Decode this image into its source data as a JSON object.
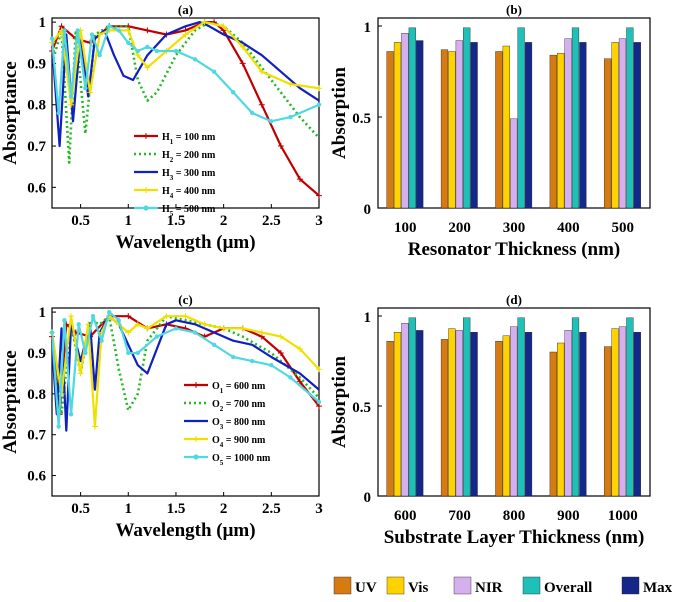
{
  "chart_data": [
    {
      "panel": "(a)",
      "type": "line",
      "title": "(a)",
      "xlabel": "Wavelength (μm)",
      "ylabel": "Absorptance",
      "xlim": [
        0.2,
        3
      ],
      "ylim": [
        0.55,
        1.01
      ],
      "xticks": [
        0.5,
        1,
        1.5,
        2,
        2.5,
        3
      ],
      "xtick_labels": [
        "0.5",
        "1",
        "1.5",
        "2",
        "2.5",
        "3"
      ],
      "yticks": [
        0.6,
        0.7,
        0.8,
        0.9,
        1
      ],
      "ytick_labels": [
        "0.6",
        "0.7",
        "0.8",
        "0.9",
        "1"
      ],
      "legend_position": "lower-left",
      "series": [
        {
          "name": "H",
          "sub": "1",
          "value_text": " = 100 nm",
          "color": "#c00000",
          "dash": "solid",
          "marker": "plus",
          "x": [
            0.2,
            0.3,
            0.45,
            0.6,
            0.8,
            1.0,
            1.2,
            1.4,
            1.6,
            1.8,
            1.9,
            2.0,
            2.2,
            2.4,
            2.6,
            2.8,
            3.0
          ],
          "y": [
            0.93,
            0.99,
            0.96,
            0.95,
            0.99,
            0.99,
            0.98,
            0.97,
            0.98,
            1.0,
            1.0,
            0.98,
            0.9,
            0.8,
            0.7,
            0.62,
            0.58
          ]
        },
        {
          "name": "H",
          "sub": "2",
          "value_text": " = 200 nm",
          "color": "#22bb22",
          "dash": "dotted",
          "marker": "none",
          "x": [
            0.2,
            0.3,
            0.38,
            0.45,
            0.55,
            0.65,
            0.8,
            1.0,
            1.1,
            1.2,
            1.3,
            1.5,
            1.7,
            1.85,
            2.0,
            2.2,
            2.5,
            2.8,
            3.0
          ],
          "y": [
            0.9,
            0.98,
            0.66,
            0.98,
            0.73,
            0.97,
            0.99,
            0.99,
            0.86,
            0.81,
            0.83,
            0.92,
            0.98,
            1.0,
            0.99,
            0.95,
            0.86,
            0.77,
            0.72
          ]
        },
        {
          "name": "H",
          "sub": "3",
          "value_text": " = 300 nm",
          "color": "#1020c0",
          "dash": "solid",
          "marker": "none",
          "x": [
            0.2,
            0.28,
            0.35,
            0.42,
            0.5,
            0.58,
            0.65,
            0.75,
            0.85,
            0.95,
            1.05,
            1.2,
            1.4,
            1.6,
            1.75,
            1.85,
            2.0,
            2.2,
            2.4,
            2.6,
            2.8,
            3.0
          ],
          "y": [
            0.95,
            0.7,
            0.97,
            0.76,
            0.97,
            0.82,
            0.96,
            0.98,
            0.92,
            0.87,
            0.86,
            0.92,
            0.97,
            0.99,
            1.0,
            0.99,
            0.97,
            0.95,
            0.92,
            0.88,
            0.84,
            0.81
          ]
        },
        {
          "name": "H",
          "sub": "4",
          "value_text": " = 400 nm",
          "color": "#f0e000",
          "dash": "solid",
          "marker": "plus",
          "x": [
            0.2,
            0.3,
            0.4,
            0.5,
            0.6,
            0.7,
            0.8,
            1.0,
            1.1,
            1.2,
            1.4,
            1.6,
            1.8,
            2.0,
            2.2,
            2.4,
            2.7,
            3.0
          ],
          "y": [
            0.95,
            0.98,
            0.8,
            0.98,
            0.83,
            0.97,
            0.98,
            0.98,
            0.92,
            0.89,
            0.93,
            0.97,
            1.0,
            0.99,
            0.94,
            0.88,
            0.85,
            0.84
          ]
        },
        {
          "name": "H",
          "sub": "5",
          "value_text": " = 500 nm",
          "color": "#50d8e0",
          "dash": "solid",
          "marker": "star",
          "x": [
            0.2,
            0.27,
            0.33,
            0.4,
            0.47,
            0.55,
            0.62,
            0.7,
            0.8,
            0.9,
            1.0,
            1.1,
            1.2,
            1.3,
            1.5,
            1.7,
            1.9,
            2.1,
            2.3,
            2.5,
            2.7,
            3.0
          ],
          "y": [
            0.96,
            0.78,
            0.98,
            0.82,
            0.98,
            0.84,
            0.97,
            0.92,
            0.99,
            0.98,
            0.95,
            0.93,
            0.94,
            0.93,
            0.93,
            0.91,
            0.88,
            0.83,
            0.78,
            0.76,
            0.77,
            0.8
          ]
        }
      ]
    },
    {
      "panel": "(b)",
      "type": "bar",
      "title": "(b)",
      "xlabel": "Resonator Thickness (nm)",
      "ylabel": "Absorption",
      "ylim": [
        0,
        1
      ],
      "yticks": [
        0,
        0.5,
        1
      ],
      "ytick_labels": [
        "0",
        "0.5",
        "1"
      ],
      "categories": [
        "100",
        "200",
        "300",
        "400",
        "500"
      ],
      "series": [
        {
          "name": "UV",
          "color": "#d67a12",
          "values": [
            0.86,
            0.87,
            0.86,
            0.84,
            0.82
          ]
        },
        {
          "name": "Vis",
          "color": "#ffd200",
          "values": [
            0.91,
            0.86,
            0.89,
            0.85,
            0.91
          ]
        },
        {
          "name": "NIR",
          "color": "#d6b0ee",
          "values": [
            0.96,
            0.92,
            0.49,
            0.93,
            0.93
          ]
        },
        {
          "name": "Overall",
          "color": "#1ec0b8",
          "values": [
            0.99,
            0.99,
            0.99,
            0.99,
            0.99
          ]
        },
        {
          "name": "Max",
          "color": "#14288a",
          "values": [
            0.92,
            0.91,
            0.91,
            0.91,
            0.91
          ]
        }
      ]
    },
    {
      "panel": "(c)",
      "type": "line",
      "title": "(c)",
      "xlabel": "Wavelength (μm)",
      "ylabel": "Absorptance",
      "xlim": [
        0.2,
        3
      ],
      "ylim": [
        0.55,
        1.01
      ],
      "xticks": [
        0.5,
        1,
        1.5,
        2,
        2.5,
        3
      ],
      "xtick_labels": [
        "0.5",
        "1",
        "1.5",
        "2",
        "2.5",
        "3"
      ],
      "yticks": [
        0.6,
        0.7,
        0.8,
        0.9,
        1
      ],
      "ytick_labels": [
        "0.6",
        "0.7",
        "0.8",
        "0.9",
        "1"
      ],
      "legend_position": "lower-right",
      "series": [
        {
          "name": "O",
          "sub": "1",
          "value_text": " = 600 nm",
          "color": "#c00000",
          "dash": "solid",
          "marker": "plus",
          "x": [
            0.2,
            0.28,
            0.35,
            0.45,
            0.6,
            0.8,
            1.0,
            1.2,
            1.4,
            1.6,
            1.8,
            2.0,
            2.2,
            2.4,
            2.6,
            2.8,
            3.0
          ],
          "y": [
            0.94,
            0.75,
            0.97,
            0.95,
            0.94,
            0.99,
            0.99,
            0.96,
            0.97,
            0.96,
            0.94,
            0.96,
            0.96,
            0.94,
            0.9,
            0.83,
            0.77
          ]
        },
        {
          "name": "O",
          "sub": "2",
          "value_text": " = 700 nm",
          "color": "#22bb22",
          "dash": "dotted",
          "marker": "none",
          "x": [
            0.2,
            0.3,
            0.4,
            0.5,
            0.6,
            0.7,
            0.8,
            0.9,
            1.0,
            1.1,
            1.2,
            1.4,
            1.6,
            1.8,
            2.0,
            2.2,
            2.5,
            2.8,
            3.0
          ],
          "y": [
            0.93,
            0.75,
            0.97,
            0.85,
            0.98,
            0.97,
            0.99,
            0.86,
            0.76,
            0.8,
            0.93,
            0.99,
            0.98,
            0.97,
            0.96,
            0.94,
            0.9,
            0.84,
            0.79
          ]
        },
        {
          "name": "O",
          "sub": "3",
          "value_text": " = 800 nm",
          "color": "#1020c0",
          "dash": "solid",
          "marker": "none",
          "x": [
            0.2,
            0.25,
            0.3,
            0.35,
            0.4,
            0.5,
            0.6,
            0.65,
            0.7,
            0.8,
            0.9,
            1.0,
            1.1,
            1.2,
            1.4,
            1.5,
            1.7,
            1.9,
            2.1,
            2.3,
            2.5,
            2.8,
            3.0
          ],
          "y": [
            0.92,
            0.75,
            0.96,
            0.71,
            0.97,
            0.88,
            0.97,
            0.81,
            0.95,
            0.99,
            0.97,
            0.92,
            0.87,
            0.85,
            0.97,
            0.98,
            0.97,
            0.95,
            0.93,
            0.92,
            0.89,
            0.85,
            0.81
          ]
        },
        {
          "name": "O",
          "sub": "4",
          "value_text": " = 900 nm",
          "color": "#f0e000",
          "dash": "solid",
          "marker": "plus",
          "x": [
            0.2,
            0.3,
            0.4,
            0.5,
            0.58,
            0.65,
            0.72,
            0.8,
            0.9,
            1.0,
            1.1,
            1.2,
            1.4,
            1.6,
            1.8,
            2.0,
            2.2,
            2.4,
            2.6,
            2.8,
            3.0
          ],
          "y": [
            0.95,
            0.8,
            0.99,
            0.85,
            0.97,
            0.72,
            0.95,
            0.99,
            0.97,
            0.95,
            0.97,
            0.96,
            0.99,
            0.99,
            0.97,
            0.96,
            0.96,
            0.95,
            0.94,
            0.91,
            0.86
          ]
        },
        {
          "name": "O",
          "sub": "5",
          "value_text": " = 1000 nm",
          "color": "#50d8e0",
          "dash": "solid",
          "marker": "star",
          "x": [
            0.2,
            0.27,
            0.33,
            0.4,
            0.48,
            0.55,
            0.63,
            0.72,
            0.8,
            0.9,
            1.0,
            1.1,
            1.3,
            1.5,
            1.7,
            1.9,
            2.1,
            2.3,
            2.5,
            2.7,
            3.0
          ],
          "y": [
            0.95,
            0.72,
            0.98,
            0.75,
            0.97,
            0.9,
            0.99,
            0.93,
            1.0,
            0.98,
            0.9,
            0.9,
            0.94,
            0.96,
            0.95,
            0.92,
            0.89,
            0.88,
            0.87,
            0.84,
            0.78
          ]
        }
      ]
    },
    {
      "panel": "(d)",
      "type": "bar",
      "title": "(d)",
      "xlabel": "Substrate Layer Thickness (nm)",
      "ylabel": "Absorption",
      "ylim": [
        0,
        1
      ],
      "yticks": [
        0,
        0.5,
        1
      ],
      "ytick_labels": [
        "0",
        "0.5",
        "1"
      ],
      "categories": [
        "600",
        "700",
        "800",
        "900",
        "1000"
      ],
      "series": [
        {
          "name": "UV",
          "color": "#d67a12",
          "values": [
            0.86,
            0.87,
            0.86,
            0.8,
            0.83
          ]
        },
        {
          "name": "Vis",
          "color": "#ffd200",
          "values": [
            0.91,
            0.93,
            0.89,
            0.85,
            0.93
          ]
        },
        {
          "name": "NIR",
          "color": "#d6b0ee",
          "values": [
            0.96,
            0.92,
            0.94,
            0.92,
            0.94
          ]
        },
        {
          "name": "Overall",
          "color": "#1ec0b8",
          "values": [
            0.99,
            0.99,
            0.99,
            0.99,
            0.99
          ]
        },
        {
          "name": "Max",
          "color": "#14288a",
          "values": [
            0.92,
            0.91,
            0.91,
            0.91,
            0.91
          ]
        }
      ]
    }
  ],
  "bar_legend": {
    "position": "bottom-right",
    "items": [
      {
        "label": "UV",
        "color": "#d67a12"
      },
      {
        "label": "Vis",
        "color": "#ffd200"
      },
      {
        "label": "NIR",
        "color": "#d6b0ee"
      },
      {
        "label": "Overall",
        "color": "#1ec0b8"
      },
      {
        "label": "Max",
        "color": "#14288a"
      }
    ]
  }
}
